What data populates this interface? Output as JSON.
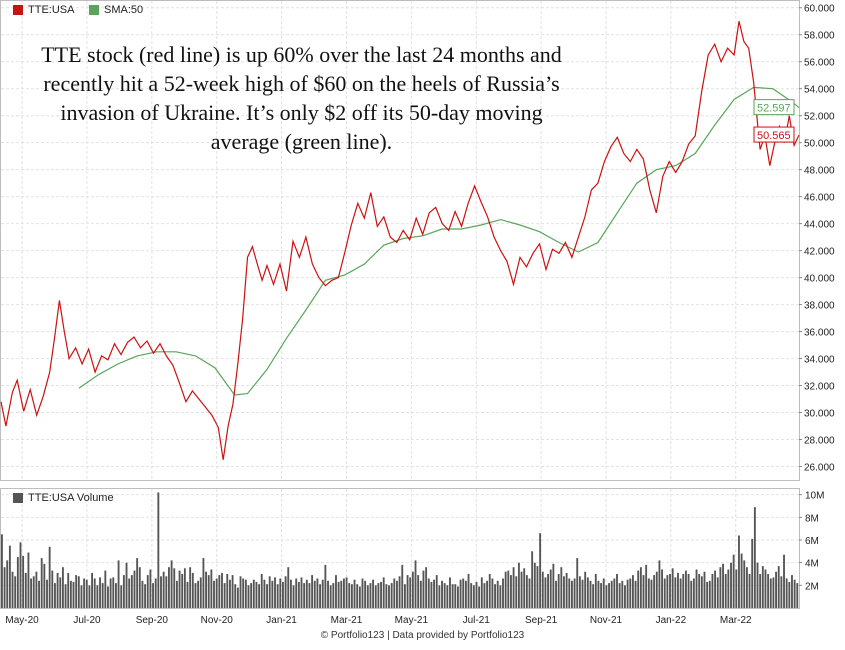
{
  "legend": {
    "price_label": "TTE:USA",
    "sma_label": "SMA:50",
    "price_color": "#cc1111",
    "sma_color": "#5aa55a",
    "volume_label": "TTE:USA Volume",
    "volume_color": "#555555"
  },
  "annotation": "TTE stock (red line) is up 60% over the last 24 months and recently hit a 52-week high of $60 on the heels of Russia’s invasion of Ukraine. It’s only $2 off its 50-day moving average (green line).",
  "footer": "© Portfolio123 | Data provided by Portfolio123",
  "chart_data": [
    {
      "type": "line",
      "ylim": [
        25,
        60.5
      ],
      "yticks": [
        "26.000",
        "28.000",
        "30.000",
        "32.000",
        "34.000",
        "36.000",
        "38.000",
        "40.000",
        "42.000",
        "44.000",
        "46.000",
        "48.000",
        "50.000",
        "52.000",
        "54.000",
        "56.000",
        "58.000",
        "60.000"
      ],
      "ytick_values": [
        26,
        28,
        30,
        32,
        34,
        36,
        38,
        40,
        42,
        44,
        46,
        48,
        50,
        52,
        54,
        56,
        58,
        60
      ],
      "x_categories": [
        "May-20",
        "Jul-20",
        "Sep-20",
        "Nov-20",
        "Jan-21",
        "Mar-21",
        "May-21",
        "Jul-21",
        "Sep-21",
        "Nov-21",
        "Jan-22",
        "Mar-22"
      ],
      "xlim": [
        0,
        24.6
      ],
      "series": [
        {
          "name": "TTE:USA",
          "color": "#cc1111",
          "points": [
            [
              0,
              30.8
            ],
            [
              0.15,
              29.0
            ],
            [
              0.35,
              31.5
            ],
            [
              0.5,
              32.4
            ],
            [
              0.7,
              30.1
            ],
            [
              0.9,
              31.7
            ],
            [
              1.1,
              29.8
            ],
            [
              1.3,
              31.2
            ],
            [
              1.5,
              33.0
            ],
            [
              1.65,
              35.5
            ],
            [
              1.8,
              38.3
            ],
            [
              1.95,
              36.0
            ],
            [
              2.1,
              34.0
            ],
            [
              2.3,
              34.8
            ],
            [
              2.5,
              33.6
            ],
            [
              2.7,
              34.7
            ],
            [
              2.9,
              33.0
            ],
            [
              3.1,
              34.2
            ],
            [
              3.3,
              33.9
            ],
            [
              3.5,
              35.1
            ],
            [
              3.7,
              34.3
            ],
            [
              3.9,
              35.2
            ],
            [
              4.1,
              35.6
            ],
            [
              4.3,
              34.8
            ],
            [
              4.5,
              35.3
            ],
            [
              4.7,
              34.4
            ],
            [
              4.9,
              35.1
            ],
            [
              5.1,
              34.2
            ],
            [
              5.3,
              33.5
            ],
            [
              5.5,
              32.2
            ],
            [
              5.7,
              30.8
            ],
            [
              5.9,
              31.6
            ],
            [
              6.1,
              31.0
            ],
            [
              6.3,
              30.4
            ],
            [
              6.5,
              29.8
            ],
            [
              6.7,
              28.9
            ],
            [
              6.85,
              26.5
            ],
            [
              7.0,
              29.0
            ],
            [
              7.15,
              30.6
            ],
            [
              7.3,
              33.6
            ],
            [
              7.45,
              37.0
            ],
            [
              7.6,
              41.5
            ],
            [
              7.75,
              42.3
            ],
            [
              7.9,
              41.0
            ],
            [
              8.05,
              39.8
            ],
            [
              8.2,
              40.9
            ],
            [
              8.4,
              39.5
            ],
            [
              8.6,
              41.0
            ],
            [
              8.8,
              39.0
            ],
            [
              9.0,
              42.7
            ],
            [
              9.2,
              41.5
            ],
            [
              9.4,
              43.0
            ],
            [
              9.6,
              41.0
            ],
            [
              9.8,
              40.0
            ],
            [
              10.0,
              39.4
            ],
            [
              10.2,
              39.8
            ],
            [
              10.4,
              40.0
            ],
            [
              10.6,
              41.9
            ],
            [
              10.8,
              43.9
            ],
            [
              11.0,
              45.5
            ],
            [
              11.2,
              44.4
            ],
            [
              11.4,
              46.3
            ],
            [
              11.6,
              43.8
            ],
            [
              11.8,
              44.5
            ],
            [
              12.0,
              43.0
            ],
            [
              12.2,
              42.6
            ],
            [
              12.4,
              43.5
            ],
            [
              12.6,
              42.8
            ],
            [
              12.8,
              44.4
            ],
            [
              13.0,
              43.2
            ],
            [
              13.2,
              44.8
            ],
            [
              13.4,
              45.2
            ],
            [
              13.6,
              44.0
            ],
            [
              13.8,
              43.5
            ],
            [
              14.0,
              44.9
            ],
            [
              14.2,
              43.8
            ],
            [
              14.4,
              45.5
            ],
            [
              14.6,
              46.8
            ],
            [
              14.8,
              45.6
            ],
            [
              15.0,
              44.5
            ],
            [
              15.2,
              43.0
            ],
            [
              15.4,
              42.0
            ],
            [
              15.6,
              41.2
            ],
            [
              15.8,
              39.5
            ],
            [
              16.0,
              41.5
            ],
            [
              16.2,
              40.8
            ],
            [
              16.4,
              41.8
            ],
            [
              16.6,
              42.5
            ],
            [
              16.8,
              40.6
            ],
            [
              17.0,
              42.1
            ],
            [
              17.2,
              41.8
            ],
            [
              17.4,
              42.6
            ],
            [
              17.6,
              41.5
            ],
            [
              17.8,
              43.0
            ],
            [
              18.0,
              44.5
            ],
            [
              18.2,
              46.5
            ],
            [
              18.4,
              47.0
            ],
            [
              18.6,
              48.6
            ],
            [
              18.8,
              49.7
            ],
            [
              19.0,
              50.4
            ],
            [
              19.2,
              49.2
            ],
            [
              19.4,
              48.6
            ],
            [
              19.6,
              49.5
            ],
            [
              19.8,
              48.8
            ],
            [
              20.0,
              46.5
            ],
            [
              20.2,
              44.8
            ],
            [
              20.4,
              47.5
            ],
            [
              20.6,
              48.6
            ],
            [
              20.8,
              47.8
            ],
            [
              21.0,
              48.6
            ],
            [
              21.2,
              49.9
            ],
            [
              21.4,
              50.5
            ],
            [
              21.6,
              53.8
            ],
            [
              21.8,
              56.5
            ],
            [
              22.0,
              57.3
            ],
            [
              22.2,
              56.0
            ],
            [
              22.4,
              57.0
            ],
            [
              22.6,
              56.5
            ],
            [
              22.75,
              59.0
            ],
            [
              22.9,
              57.5
            ],
            [
              23.05,
              57.0
            ],
            [
              23.2,
              54.5
            ],
            [
              23.3,
              52.0
            ],
            [
              23.4,
              49.5
            ],
            [
              23.55,
              50.5
            ],
            [
              23.7,
              48.3
            ],
            [
              23.85,
              50.0
            ],
            [
              24.0,
              51.2
            ],
            [
              24.15,
              50.0
            ],
            [
              24.3,
              52.0
            ],
            [
              24.45,
              49.8
            ],
            [
              24.6,
              50.565
            ]
          ]
        },
        {
          "name": "SMA:50",
          "color": "#5aa55a",
          "points": [
            [
              2.4,
              31.8
            ],
            [
              3.0,
              32.8
            ],
            [
              3.6,
              33.6
            ],
            [
              4.2,
              34.2
            ],
            [
              4.8,
              34.5
            ],
            [
              5.4,
              34.5
            ],
            [
              6.0,
              34.2
            ],
            [
              6.6,
              33.3
            ],
            [
              7.2,
              31.3
            ],
            [
              7.6,
              31.4
            ],
            [
              8.2,
              33.2
            ],
            [
              8.8,
              35.5
            ],
            [
              9.4,
              37.6
            ],
            [
              10.0,
              39.8
            ],
            [
              10.6,
              40.2
            ],
            [
              11.2,
              41.0
            ],
            [
              11.8,
              42.4
            ],
            [
              12.4,
              42.9
            ],
            [
              13.0,
              43.1
            ],
            [
              13.6,
              43.6
            ],
            [
              14.2,
              43.6
            ],
            [
              14.8,
              43.9
            ],
            [
              15.4,
              44.3
            ],
            [
              16.0,
              43.9
            ],
            [
              16.6,
              43.4
            ],
            [
              17.2,
              42.6
            ],
            [
              17.8,
              41.9
            ],
            [
              18.4,
              42.6
            ],
            [
              19.0,
              44.8
            ],
            [
              19.6,
              47.0
            ],
            [
              20.2,
              48.0
            ],
            [
              20.8,
              48.3
            ],
            [
              21.4,
              49.2
            ],
            [
              22.0,
              51.3
            ],
            [
              22.6,
              53.2
            ],
            [
              23.2,
              54.1
            ],
            [
              23.8,
              54.0
            ],
            [
              24.4,
              53.0
            ],
            [
              24.6,
              52.597
            ]
          ]
        }
      ],
      "last_values": {
        "price": "50.565",
        "sma": "52.597"
      }
    },
    {
      "type": "bar",
      "name": "TTE:USA Volume",
      "ylim": [
        0,
        10.5
      ],
      "yticks": [
        "2M",
        "4M",
        "6M",
        "8M",
        "10M"
      ],
      "ytick_values": [
        2,
        4,
        6,
        8,
        10
      ],
      "values_millions": [
        6.5,
        3.6,
        4.2,
        5.5,
        3.2,
        2.8,
        4.5,
        5.8,
        4.6,
        3.1,
        4.9,
        2.6,
        2.8,
        3.2,
        2.4,
        4.4,
        3.9,
        2.5,
        5.4,
        3.3,
        2.2,
        3.1,
        2.7,
        3.6,
        2.1,
        3.1,
        2.4,
        2.3,
        2.9,
        2.8,
        2.0,
        2.6,
        2.5,
        2.0,
        3.1,
        2.6,
        2.0,
        2.7,
        2.2,
        3.3,
        1.9,
        2.6,
        2.7,
        2.2,
        4.2,
        2.0,
        2.9,
        4.0,
        2.6,
        2.9,
        3.3,
        4.4,
        3.6,
        2.4,
        2.1,
        2.9,
        3.4,
        2.2,
        2.6,
        10.2,
        2.8,
        3.2,
        2.8,
        3.6,
        4.2,
        3.5,
        2.4,
        3.3,
        3.0,
        3.5,
        2.3,
        3.6,
        3.1,
        2.2,
        2.4,
        2.7,
        4.4,
        3.2,
        2.9,
        3.4,
        2.4,
        2.6,
        2.9,
        3.1,
        2.2,
        3.0,
        2.5,
        2.9,
        2.1,
        1.8,
        2.8,
        2.6,
        2.5,
        2.0,
        2.2,
        2.5,
        2.3,
        2.1,
        3.0,
        2.5,
        2.1,
        2.8,
        2.4,
        2.7,
        2.1,
        2.6,
        2.3,
        2.8,
        3.6,
        2.5,
        2.0,
        2.6,
        2.3,
        2.7,
        2.2,
        2.5,
        2.2,
        2.9,
        2.4,
        2.6,
        2.1,
        2.5,
        3.8,
        2.4,
        2.0,
        2.2,
        2.9,
        2.3,
        2.4,
        2.6,
        2.7,
        2.2,
        2.1,
        2.5,
        2.1,
        1.9,
        2.6,
        2.4,
        2.0,
        2.2,
        2.5,
        2.0,
        2.2,
        2.3,
        2.7,
        2.1,
        2.0,
        2.2,
        2.6,
        2.4,
        2.8,
        3.8,
        2.1,
        2.9,
        2.7,
        3.2,
        4.2,
        2.9,
        2.4,
        3.3,
        3.6,
        2.6,
        2.3,
        2.5,
        2.9,
        2.0,
        2.4,
        2.2,
        2.0,
        2.7,
        2.1,
        2.1,
        1.9,
        2.5,
        2.6,
        2.4,
        3.0,
        2.2,
        2.0,
        2.3,
        1.9,
        2.7,
        2.2,
        2.4,
        3.0,
        2.6,
        2.1,
        2.4,
        2.0,
        2.6,
        3.2,
        3.3,
        2.9,
        3.6,
        2.8,
        4.0,
        3.2,
        3.5,
        2.9,
        2.6,
        5.0,
        4.0,
        3.7,
        6.6,
        3.2,
        2.7,
        3.0,
        3.4,
        3.9,
        2.4,
        3.0,
        3.6,
        2.8,
        3.1,
        2.6,
        2.4,
        2.6,
        4.4,
        2.8,
        2.5,
        3.2,
        2.7,
        2.4,
        2.1,
        3.0,
        2.4,
        2.2,
        2.6,
        2.0,
        2.2,
        2.4,
        2.6,
        3.0,
        2.2,
        2.4,
        2.0,
        2.5,
        2.6,
        2.9,
        2.4,
        3.3,
        3.6,
        2.9,
        3.8,
        2.6,
        2.5,
        2.9,
        3.2,
        4.2,
        3.4,
        2.6,
        2.9,
        3.0,
        3.5,
        2.7,
        3.1,
        2.6,
        3.0,
        3.3,
        3.0,
        2.4,
        2.6,
        3.4,
        3.0,
        2.8,
        3.2,
        2.3,
        2.4,
        3.0,
        3.3,
        2.7,
        3.6,
        3.9,
        3.0,
        3.4,
        4.0,
        4.7,
        3.4,
        6.4,
        4.8,
        4.2,
        3.6,
        3.0,
        6.1,
        8.9,
        4.0,
        3.0,
        3.7,
        3.4,
        3.0,
        2.6,
        2.7,
        3.2,
        3.7,
        2.8,
        4.7,
        2.6,
        2.3,
        2.9,
        2.5,
        2.2
      ]
    }
  ],
  "x_axis_labels": [
    "May-20",
    "Jul-20",
    "Sep-20",
    "Nov-20",
    "Jan-21",
    "Mar-21",
    "May-21",
    "Jul-21",
    "Sep-21",
    "Nov-21",
    "Jan-22",
    "Mar-22"
  ]
}
